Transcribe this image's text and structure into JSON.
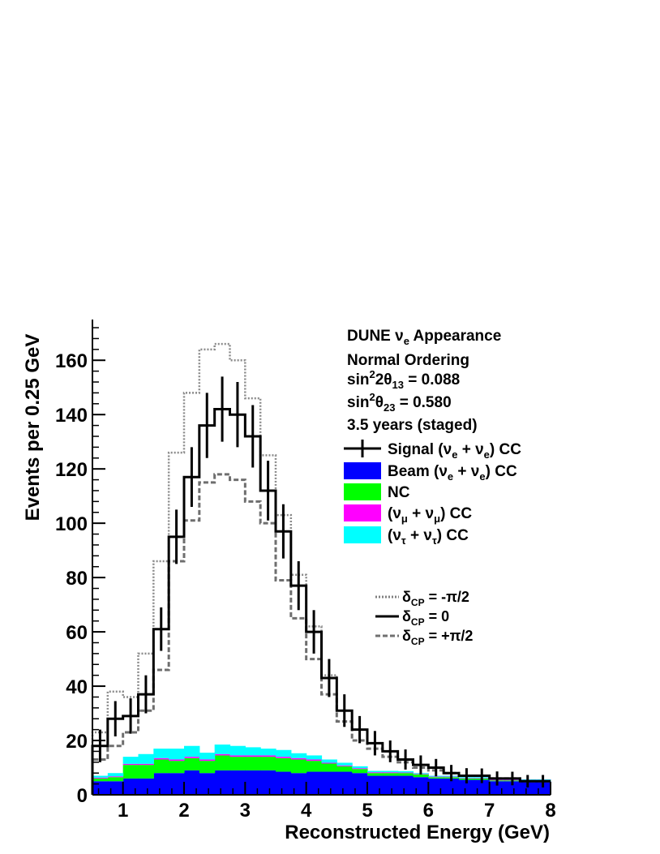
{
  "chart_data": {
    "type": "histogram",
    "xlabel": "Reconstructed Energy (GeV)",
    "ylabel": "Events per 0.25 GeV",
    "xlim": [
      0.5,
      8.0
    ],
    "ylim": [
      0,
      175
    ],
    "bin_width": 0.25,
    "x_ticks": [
      1,
      2,
      3,
      4,
      5,
      6,
      7,
      8
    ],
    "y_ticks": [
      0,
      20,
      40,
      60,
      80,
      100,
      120,
      140,
      160
    ],
    "grid": false,
    "bin_edges": [
      0.5,
      0.75,
      1.0,
      1.25,
      1.5,
      1.75,
      2.0,
      2.25,
      2.5,
      2.75,
      3.0,
      3.25,
      3.5,
      3.75,
      4.0,
      4.25,
      4.5,
      4.75,
      5.0,
      5.25,
      5.5,
      5.75,
      6.0,
      6.25,
      6.5,
      6.75,
      7.0,
      7.25,
      7.5,
      7.75,
      8.0
    ],
    "annotation": {
      "line1_prefix": "DUNE ",
      "line1_nu": "ν",
      "line1_nu_sub": "e",
      "line1_suffix": " Appearance",
      "line2": "Normal Ordering",
      "line3_prefix": "sin",
      "line3_sup": "2",
      "line3_mid": "2θ",
      "line3_sub": "13",
      "line3_value": " = 0.088",
      "line4_prefix": "sin",
      "line4_sup": "2",
      "line4_mid": "θ",
      "line4_sub": "23",
      "line4_value": " = 0.580",
      "line5": "3.5 years (staged)"
    },
    "legend": {
      "placement": "top-right",
      "entries": [
        {
          "key": "signal",
          "text_a": "Signal (ν",
          "sub_a": "e",
          "text_b": " + ν",
          "sub_b": "e",
          "text_c": ") CC",
          "color": "#000000",
          "style": "errorbar"
        },
        {
          "key": "beam",
          "text_a": "Beam (ν",
          "sub_a": "e",
          "text_b": " + ν",
          "sub_b": "e",
          "text_c": ") CC",
          "color": "#0000ff",
          "style": "fill"
        },
        {
          "key": "nc",
          "text_a": "NC",
          "sub_a": "",
          "text_b": "",
          "sub_b": "",
          "text_c": "",
          "color": "#00ff00",
          "style": "fill"
        },
        {
          "key": "numu",
          "text_a": "(ν",
          "sub_a": "μ",
          "text_b": " + ν",
          "sub_b": "μ",
          "text_c": ") CC",
          "color": "#ff00ff",
          "style": "fill"
        },
        {
          "key": "nutau",
          "text_a": "(ν",
          "sub_a": "τ",
          "text_b": " + ν",
          "sub_b": "τ",
          "text_c": ") CC",
          "color": "#00ffff",
          "style": "fill"
        }
      ]
    },
    "delta_legend": {
      "placement": "middle-right",
      "entries": [
        {
          "key": "minus",
          "symbol": "δ",
          "sub": "CP",
          "value": " = -π/2",
          "color": "#808080",
          "dash": "dotted"
        },
        {
          "key": "zero",
          "symbol": "δ",
          "sub": "CP",
          "value": " = 0",
          "color": "#000000",
          "dash": "solid"
        },
        {
          "key": "plus",
          "symbol": "δ",
          "sub": "CP",
          "value": " = +π/2",
          "color": "#707070",
          "dash": "dashed"
        }
      ]
    },
    "series": {
      "beam": [
        5,
        5,
        6,
        6,
        8,
        8,
        9,
        8,
        9,
        9,
        9,
        9,
        8.5,
        8,
        8.5,
        8.5,
        8.5,
        8,
        7,
        7,
        7,
        6.5,
        6,
        6,
        5.5,
        5.5,
        5,
        5,
        5,
        5
      ],
      "nc": [
        1,
        1.5,
        5,
        5,
        5,
        4.5,
        4.5,
        4.5,
        5.5,
        5,
        5,
        5,
        5,
        5,
        4,
        3,
        2,
        1.5,
        1,
        1,
        1,
        1,
        0.5,
        0.5,
        0.5,
        0.5,
        0.3,
        0.3,
        0.3,
        0.3
      ],
      "numu": [
        0.3,
        0.3,
        0.4,
        0.4,
        0.5,
        0.5,
        0.5,
        0.5,
        0.5,
        0.5,
        0.5,
        0.5,
        0.5,
        0.5,
        0.5,
        0.3,
        0.3,
        0.3,
        0.3,
        0.3,
        0.2,
        0.2,
        0.2,
        0.2,
        0.2,
        0.2,
        0.2,
        0.2,
        0.2,
        0.2
      ],
      "nutau": [
        0.7,
        1.2,
        2.6,
        3.6,
        3.5,
        4.0,
        4.0,
        2.5,
        3.5,
        3.5,
        3.0,
        2.5,
        2.5,
        1.8,
        1.5,
        1.2,
        1.0,
        0.7,
        0.5,
        0.5,
        0.5,
        0.3,
        0.3,
        0.3,
        0.3,
        0.3,
        0.2,
        0.2,
        0.2,
        0.2
      ],
      "total_dcp_0": [
        18,
        28,
        29,
        37,
        61,
        95,
        117,
        136,
        142,
        140,
        132,
        112,
        97,
        77,
        60,
        43,
        31,
        24,
        19,
        16,
        13,
        11,
        10,
        8,
        7,
        7,
        6,
        6,
        5,
        5
      ],
      "total_dcp_minus_pi_2": [
        23,
        38,
        36,
        52,
        86,
        126,
        148,
        164,
        166,
        160,
        146,
        125,
        103,
        81,
        62,
        44,
        31,
        24,
        19,
        16,
        13,
        11,
        10,
        8,
        7,
        7,
        6,
        6,
        5,
        5
      ],
      "total_dcp_plus_pi_2": [
        13,
        18,
        23,
        31,
        46,
        86,
        101,
        115,
        118,
        116,
        108,
        100,
        79,
        65,
        50,
        37,
        27,
        20,
        17,
        14,
        12,
        10,
        9,
        8,
        7,
        7,
        6,
        6,
        5,
        5
      ],
      "error_dcp_0": [
        6,
        6.5,
        6.5,
        7,
        8,
        10,
        11,
        12,
        12,
        12,
        11.5,
        11,
        10,
        9,
        8,
        7,
        6,
        5,
        4.5,
        4,
        3.7,
        3.5,
        3.2,
        3,
        2.8,
        2.7,
        2.6,
        2.5,
        2.3,
        2.3
      ]
    }
  }
}
